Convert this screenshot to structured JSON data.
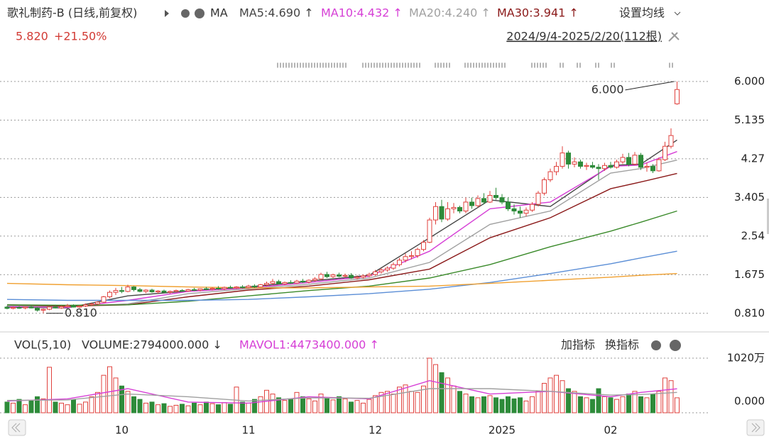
{
  "chart_data": [
    {
      "type": "candlestick",
      "title": "歌礼制药-B (日线,前复权)",
      "indicator": "MA",
      "settings": "设置均线",
      "price": "5.820",
      "change": "+21.50%",
      "range_label": "2024/9/4-2025/2/20(112根)",
      "up_color": "#e0413d",
      "down_color": "#2e8b3a",
      "ylim": [
        0.6,
        6.3
      ],
      "yticks": [
        {
          "value": 0.81,
          "label": "0.810"
        },
        1.675,
        2.54,
        3.405,
        4.27,
        5.135,
        {
          "value": 6,
          "label": "6.000"
        }
      ],
      "grid": true,
      "xticks": [
        {
          "value": 19,
          "label": "10"
        },
        {
          "value": 40,
          "label": "11"
        },
        {
          "value": 61,
          "label": "12"
        },
        {
          "value": 82,
          "label": "2025"
        },
        {
          "value": 100,
          "label": "02"
        }
      ],
      "annotations": [
        {
          "label": "6.000",
          "value": 6,
          "x": 111
        },
        {
          "label": "0.810",
          "value": 0.81,
          "x": 6
        }
      ],
      "candles": [
        [
          0.95,
          0.98,
          0.9,
          0.92
        ],
        [
          0.92,
          0.96,
          0.9,
          0.94
        ],
        [
          0.94,
          0.97,
          0.91,
          0.93
        ],
        [
          0.93,
          0.96,
          0.9,
          0.95
        ],
        [
          0.95,
          0.99,
          0.92,
          0.93
        ],
        [
          0.93,
          0.95,
          0.85,
          0.88
        ],
        [
          0.88,
          0.92,
          0.81,
          0.9
        ],
        [
          0.9,
          0.96,
          0.88,
          0.95
        ],
        [
          0.95,
          1.0,
          0.92,
          0.93
        ],
        [
          0.93,
          0.98,
          0.91,
          0.96
        ],
        [
          0.96,
          1.02,
          0.94,
          0.98
        ],
        [
          0.98,
          1.01,
          0.94,
          0.95
        ],
        [
          0.95,
          0.99,
          0.93,
          0.97
        ],
        [
          0.97,
          1.03,
          0.95,
          1.0
        ],
        [
          1.0,
          1.05,
          0.97,
          1.02
        ],
        [
          1.02,
          1.08,
          1.0,
          1.06
        ],
        [
          1.06,
          1.2,
          1.04,
          1.18
        ],
        [
          1.18,
          1.32,
          1.15,
          1.28
        ],
        [
          1.28,
          1.38,
          1.22,
          1.32
        ],
        [
          1.32,
          1.4,
          1.26,
          1.3
        ],
        [
          1.3,
          1.45,
          1.28,
          1.4
        ],
        [
          1.4,
          1.42,
          1.3,
          1.34
        ],
        [
          1.34,
          1.38,
          1.28,
          1.3
        ],
        [
          1.3,
          1.35,
          1.26,
          1.33
        ],
        [
          1.33,
          1.36,
          1.27,
          1.29
        ],
        [
          1.29,
          1.33,
          1.25,
          1.31
        ],
        [
          1.31,
          1.34,
          1.27,
          1.28
        ],
        [
          1.28,
          1.32,
          1.25,
          1.3
        ],
        [
          1.3,
          1.34,
          1.28,
          1.32
        ],
        [
          1.32,
          1.35,
          1.29,
          1.31
        ],
        [
          1.31,
          1.36,
          1.29,
          1.34
        ],
        [
          1.34,
          1.38,
          1.31,
          1.33
        ],
        [
          1.33,
          1.37,
          1.3,
          1.36
        ],
        [
          1.36,
          1.4,
          1.33,
          1.35
        ],
        [
          1.35,
          1.39,
          1.32,
          1.37
        ],
        [
          1.37,
          1.42,
          1.34,
          1.36
        ],
        [
          1.36,
          1.41,
          1.33,
          1.39
        ],
        [
          1.39,
          1.43,
          1.36,
          1.38
        ],
        [
          1.38,
          1.42,
          1.35,
          1.4
        ],
        [
          1.4,
          1.44,
          1.37,
          1.39
        ],
        [
          1.39,
          1.45,
          1.37,
          1.42
        ],
        [
          1.42,
          1.46,
          1.38,
          1.4
        ],
        [
          1.4,
          1.47,
          1.39,
          1.45
        ],
        [
          1.45,
          1.52,
          1.42,
          1.48
        ],
        [
          1.48,
          1.58,
          1.45,
          1.52
        ],
        [
          1.52,
          1.56,
          1.46,
          1.47
        ],
        [
          1.47,
          1.52,
          1.44,
          1.5
        ],
        [
          1.5,
          1.55,
          1.47,
          1.49
        ],
        [
          1.49,
          1.56,
          1.47,
          1.53
        ],
        [
          1.53,
          1.58,
          1.49,
          1.51
        ],
        [
          1.51,
          1.57,
          1.48,
          1.55
        ],
        [
          1.55,
          1.62,
          1.52,
          1.58
        ],
        [
          1.58,
          1.72,
          1.55,
          1.68
        ],
        [
          1.68,
          1.74,
          1.6,
          1.63
        ],
        [
          1.63,
          1.7,
          1.6,
          1.67
        ],
        [
          1.67,
          1.72,
          1.62,
          1.64
        ],
        [
          1.64,
          1.7,
          1.61,
          1.66
        ],
        [
          1.66,
          1.71,
          1.58,
          1.6
        ],
        [
          1.6,
          1.66,
          1.57,
          1.62
        ],
        [
          1.62,
          1.68,
          1.59,
          1.65
        ],
        [
          1.65,
          1.72,
          1.62,
          1.68
        ],
        [
          1.68,
          1.78,
          1.65,
          1.74
        ],
        [
          1.74,
          1.82,
          1.7,
          1.78
        ],
        [
          1.78,
          1.86,
          1.74,
          1.82
        ],
        [
          1.82,
          1.95,
          1.78,
          1.9
        ],
        [
          1.9,
          2.05,
          1.86,
          2.0
        ],
        [
          2.0,
          2.15,
          1.95,
          2.08
        ],
        [
          2.08,
          2.2,
          2.02,
          2.1
        ],
        [
          2.1,
          2.28,
          2.05,
          2.24
        ],
        [
          2.24,
          2.45,
          2.2,
          2.4
        ],
        [
          2.4,
          2.95,
          2.38,
          2.9
        ],
        [
          2.9,
          3.3,
          2.8,
          3.2
        ],
        [
          3.2,
          3.35,
          2.85,
          2.92
        ],
        [
          2.92,
          3.3,
          2.88,
          3.15
        ],
        [
          3.15,
          3.28,
          3.05,
          3.18
        ],
        [
          3.18,
          3.22,
          3.05,
          3.1
        ],
        [
          3.1,
          3.4,
          3.05,
          3.3
        ],
        [
          3.3,
          3.4,
          3.15,
          3.22
        ],
        [
          3.22,
          3.45,
          3.18,
          3.38
        ],
        [
          3.38,
          3.5,
          3.25,
          3.3
        ],
        [
          3.3,
          3.55,
          3.28,
          3.45
        ],
        [
          3.45,
          3.62,
          3.35,
          3.4
        ],
        [
          3.4,
          3.48,
          3.25,
          3.3
        ],
        [
          3.3,
          3.4,
          3.1,
          3.15
        ],
        [
          3.15,
          3.25,
          3.02,
          3.1
        ],
        [
          3.1,
          3.2,
          2.95,
          3.05
        ],
        [
          3.05,
          3.18,
          2.98,
          3.12
        ],
        [
          3.12,
          3.3,
          3.08,
          3.25
        ],
        [
          3.25,
          3.55,
          3.2,
          3.5
        ],
        [
          3.5,
          3.85,
          3.45,
          3.8
        ],
        [
          3.8,
          4.05,
          3.75,
          3.98
        ],
        [
          3.98,
          4.2,
          3.9,
          4.1
        ],
        [
          4.1,
          4.55,
          4.05,
          4.4
        ],
        [
          4.4,
          4.45,
          4.05,
          4.15
        ],
        [
          4.15,
          4.3,
          4.08,
          4.2
        ],
        [
          4.2,
          4.25,
          4.05,
          4.1
        ],
        [
          4.1,
          4.18,
          4.02,
          4.12
        ],
        [
          4.12,
          4.2,
          4.05,
          4.08
        ],
        [
          4.08,
          4.15,
          3.8,
          4.05
        ],
        [
          4.05,
          4.18,
          4.0,
          4.12
        ],
        [
          4.12,
          4.2,
          4.05,
          4.08
        ],
        [
          4.08,
          4.25,
          4.05,
          4.2
        ],
        [
          4.2,
          4.38,
          4.15,
          4.3
        ],
        [
          4.3,
          4.4,
          4.1,
          4.15
        ],
        [
          4.15,
          4.42,
          4.12,
          4.35
        ],
        [
          4.35,
          4.4,
          4.02,
          4.08
        ],
        [
          4.08,
          4.18,
          3.98,
          4.1
        ],
        [
          4.1,
          4.15,
          3.95,
          4.0
        ],
        [
          4.0,
          4.3,
          3.98,
          4.25
        ],
        [
          4.25,
          4.65,
          4.22,
          4.55
        ],
        [
          4.55,
          4.95,
          4.5,
          4.79
        ],
        [
          5.5,
          6.0,
          5.48,
          5.82
        ]
      ],
      "ma_x": [
        0,
        10,
        20,
        30,
        40,
        50,
        60,
        70,
        80,
        90,
        100,
        105,
        111
      ],
      "series": [
        {
          "name": "MA5:4.690 ↑",
          "color": "#444444",
          "values": [
            0.95,
            0.93,
            1.2,
            1.31,
            1.4,
            1.53,
            1.66,
            2.5,
            3.35,
            3.2,
            4.12,
            4.15,
            4.69
          ]
        },
        {
          "name": "MA10:4.432 ↑",
          "color": "#d63fd6",
          "values": [
            0.96,
            0.94,
            1.1,
            1.3,
            1.38,
            1.5,
            1.64,
            2.2,
            3.15,
            3.3,
            4.1,
            4.13,
            4.432
          ]
        },
        {
          "name": "MA20:4.240 ↑",
          "color": "#a0a0a0",
          "values": [
            0.98,
            0.96,
            1.02,
            1.25,
            1.36,
            1.46,
            1.6,
            1.95,
            2.8,
            3.1,
            3.95,
            4.05,
            4.24
          ]
        },
        {
          "name": "MA30:3.941 ↑",
          "color": "#8b1a1a",
          "values": [
            1.0,
            0.97,
            1.0,
            1.18,
            1.33,
            1.42,
            1.56,
            1.8,
            2.5,
            2.95,
            3.6,
            3.75,
            3.941
          ]
        },
        {
          "color": "#3a8a2a",
          "values": [
            1.0,
            0.99,
            1.0,
            1.08,
            1.2,
            1.32,
            1.42,
            1.6,
            1.9,
            2.3,
            2.65,
            2.85,
            3.1
          ]
        },
        {
          "color": "#5b8ed6",
          "values": [
            1.12,
            1.1,
            1.1,
            1.1,
            1.12,
            1.18,
            1.25,
            1.35,
            1.5,
            1.7,
            1.92,
            2.05,
            2.2
          ]
        },
        {
          "color": "#f0a030",
          "values": [
            1.48,
            1.45,
            1.43,
            1.4,
            1.38,
            1.38,
            1.4,
            1.42,
            1.48,
            1.55,
            1.62,
            1.66,
            1.7
          ]
        }
      ]
    },
    {
      "type": "bar",
      "title": "VOL(5,10)",
      "volume_label": "VOLUME:2794000.000 ↓",
      "buttons": [
        "加指标",
        "换指标"
      ],
      "ylim": [
        0,
        1020
      ],
      "yticks": [
        {
          "value": 1020,
          "label": "1020万"
        },
        {
          "value": 0,
          "label": "0.000"
        }
      ],
      "values": [
        200,
        180,
        250,
        150,
        220,
        300,
        260,
        850,
        200,
        180,
        150,
        240,
        160,
        200,
        300,
        380,
        700,
        860,
        650,
        500,
        400,
        300,
        250,
        180,
        200,
        150,
        170,
        120,
        140,
        160,
        130,
        180,
        150,
        200,
        170,
        150,
        190,
        160,
        480,
        200,
        180,
        250,
        300,
        420,
        350,
        280,
        230,
        250,
        380,
        300,
        260,
        220,
        350,
        280,
        240,
        300,
        260,
        200,
        230,
        180,
        250,
        320,
        380,
        400,
        350,
        480,
        520,
        400,
        380,
        500,
        1020,
        900,
        750,
        650,
        500,
        400,
        350,
        300,
        280,
        300,
        320,
        280,
        250,
        300,
        260,
        280,
        220,
        300,
        400,
        550,
        650,
        700,
        600,
        450,
        400,
        300,
        280,
        250,
        450,
        300,
        280,
        250,
        300,
        350,
        400,
        300,
        280,
        350,
        400,
        650,
        600,
        279.4
      ],
      "ma_x": [
        0,
        10,
        20,
        30,
        40,
        50,
        60,
        70,
        80,
        90,
        100,
        105,
        111
      ],
      "series": [
        {
          "name": "MAVOL1:4473400.000 ↑",
          "color": "#d63fd6",
          "values": [
            220,
            260,
            450,
            200,
            180,
            300,
            260,
            600,
            350,
            400,
            300,
            380,
            447.34
          ]
        },
        {
          "color": "#a0a0a0",
          "values": [
            230,
            240,
            350,
            300,
            220,
            280,
            270,
            450,
            450,
            400,
            330,
            340,
            380
          ]
        }
      ]
    }
  ]
}
